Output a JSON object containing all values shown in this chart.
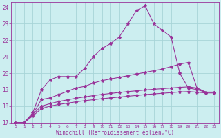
{
  "xlabel": "Windchill (Refroidissement éolien,°C)",
  "xlim": [
    -0.5,
    23.5
  ],
  "ylim": [
    17,
    24.3
  ],
  "xticks": [
    0,
    1,
    2,
    3,
    4,
    5,
    6,
    7,
    8,
    9,
    10,
    11,
    12,
    13,
    14,
    15,
    16,
    17,
    18,
    19,
    20,
    21,
    22,
    23
  ],
  "yticks": [
    17,
    18,
    19,
    20,
    21,
    22,
    23,
    24
  ],
  "background_color": "#cceef0",
  "grid_color": "#a8d4d8",
  "line_color": "#993399",
  "curves": [
    [
      17.0,
      17.0,
      17.6,
      19.0,
      19.6,
      19.8,
      19.8,
      19.8,
      20.3,
      21.0,
      21.5,
      21.8,
      22.2,
      23.0,
      23.8,
      24.1,
      23.0,
      22.6,
      22.2,
      20.0,
      19.1,
      19.0,
      18.85,
      18.85
    ],
    [
      17.0,
      17.0,
      17.5,
      18.4,
      18.5,
      18.7,
      18.9,
      19.1,
      19.2,
      19.4,
      19.55,
      19.65,
      19.75,
      19.85,
      19.95,
      20.05,
      20.15,
      20.25,
      20.4,
      20.55,
      20.65,
      19.1,
      18.85,
      18.85
    ],
    [
      17.0,
      17.0,
      17.5,
      18.0,
      18.15,
      18.28,
      18.38,
      18.48,
      18.56,
      18.64,
      18.71,
      18.77,
      18.83,
      18.88,
      18.93,
      18.98,
      19.02,
      19.06,
      19.1,
      19.14,
      19.17,
      19.1,
      18.85,
      18.85
    ],
    [
      17.0,
      17.0,
      17.4,
      17.85,
      18.0,
      18.1,
      18.18,
      18.26,
      18.33,
      18.39,
      18.45,
      18.5,
      18.55,
      18.6,
      18.65,
      18.7,
      18.74,
      18.78,
      18.82,
      18.86,
      18.88,
      18.85,
      18.8,
      18.8
    ]
  ]
}
